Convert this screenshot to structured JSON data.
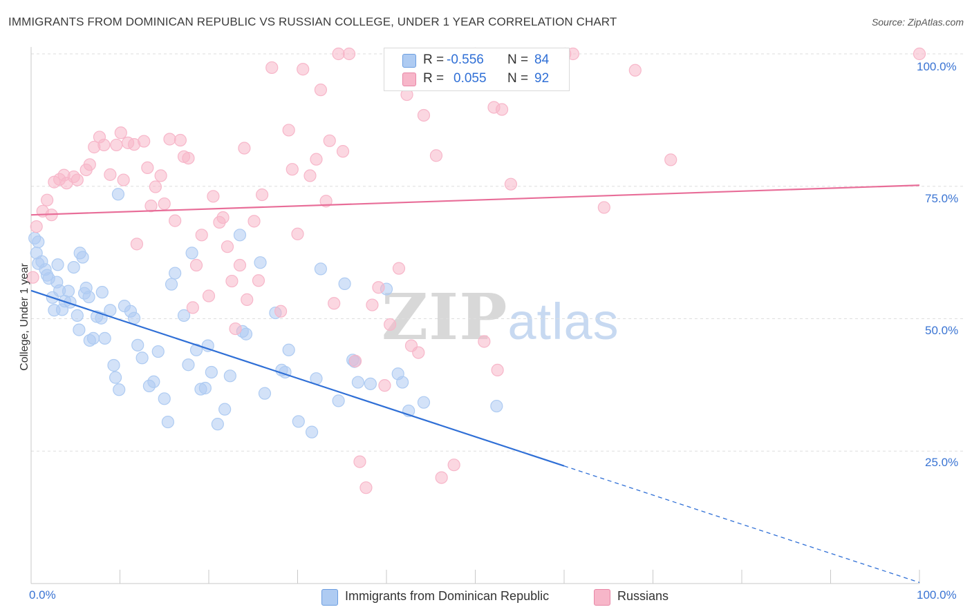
{
  "header": {
    "title": "IMMIGRANTS FROM DOMINICAN REPUBLIC VS RUSSIAN COLLEGE, UNDER 1 YEAR CORRELATION CHART",
    "source": "Source: ZipAtlas.com"
  },
  "watermark": {
    "zip": "ZIP",
    "atlas": "atlas"
  },
  "legend": {
    "rows": [
      {
        "r_label": "R =",
        "r_value": "-0.556",
        "n_label": "N =",
        "n_value": "84",
        "color": "#aecbf2"
      },
      {
        "r_label": "R =",
        "r_value": "0.055",
        "n_label": "N =",
        "n_value": "92",
        "color": "#f7b6c9"
      }
    ]
  },
  "bottom_legend": [
    {
      "label": "Immigrants from Dominican Republic",
      "color": "#aecbf2"
    },
    {
      "label": "Russians",
      "color": "#f7b6c9"
    }
  ],
  "chart_data": {
    "type": "scatter",
    "title": "IMMIGRANTS FROM DOMINICAN REPUBLIC VS RUSSIAN COLLEGE, UNDER 1 YEAR CORRELATION CHART",
    "xlabel": "",
    "ylabel": "College, Under 1 year",
    "xlim": [
      0,
      100
    ],
    "ylim": [
      0,
      100
    ],
    "x_tick_labels": [
      "0.0%",
      "100.0%"
    ],
    "y_tick_labels": [
      "25.0%",
      "50.0%",
      "75.0%",
      "100.0%"
    ],
    "y_ticks": [
      25,
      50,
      75,
      100
    ],
    "grid": true,
    "legend_position": "top-center",
    "series": [
      {
        "name": "Immigrants from Dominican Republic",
        "color": "#2f6fd6",
        "fill": "#aecbf2",
        "trend": {
          "x0": 0,
          "y0": 55.3,
          "x1": 60,
          "y1": 22.2,
          "dash_to_x": 100,
          "dash_to_y": 0.2
        },
        "points": [
          [
            0.4,
            65.2
          ],
          [
            0.6,
            62.4
          ],
          [
            0.8,
            60.4
          ],
          [
            1.2,
            60.8
          ],
          [
            1.6,
            59.3
          ],
          [
            1.8,
            58.2
          ],
          [
            2.0,
            57.6
          ],
          [
            2.4,
            54.0
          ],
          [
            2.6,
            51.6
          ],
          [
            2.9,
            56.9
          ],
          [
            3.2,
            55.3
          ],
          [
            3.5,
            51.7
          ],
          [
            3.8,
            53.3
          ],
          [
            4.2,
            55.2
          ],
          [
            4.4,
            53.1
          ],
          [
            5.5,
            62.4
          ],
          [
            5.8,
            61.6
          ],
          [
            4.8,
            59.7
          ],
          [
            6.2,
            55.8
          ],
          [
            6.0,
            54.8
          ],
          [
            6.5,
            54.1
          ],
          [
            5.2,
            50.6
          ],
          [
            5.4,
            47.9
          ],
          [
            6.6,
            45.9
          ],
          [
            7.4,
            50.4
          ],
          [
            7.9,
            50.1
          ],
          [
            7.0,
            46.3
          ],
          [
            8.3,
            46.3
          ],
          [
            8.9,
            51.6
          ],
          [
            9.3,
            41.2
          ],
          [
            9.9,
            36.6
          ],
          [
            9.5,
            38.9
          ],
          [
            10.5,
            52.4
          ],
          [
            11.2,
            51.4
          ],
          [
            11.6,
            50.1
          ],
          [
            12.0,
            45.0
          ],
          [
            12.5,
            42.6
          ],
          [
            13.3,
            37.3
          ],
          [
            13.8,
            38.1
          ],
          [
            14.3,
            43.8
          ],
          [
            15.0,
            34.9
          ],
          [
            15.4,
            30.5
          ],
          [
            15.8,
            56.5
          ],
          [
            16.2,
            58.6
          ],
          [
            17.2,
            50.6
          ],
          [
            17.7,
            41.3
          ],
          [
            18.1,
            62.4
          ],
          [
            18.6,
            44.1
          ],
          [
            19.1,
            36.7
          ],
          [
            19.6,
            36.9
          ],
          [
            19.9,
            44.9
          ],
          [
            20.3,
            39.9
          ],
          [
            21.0,
            30.1
          ],
          [
            21.8,
            32.9
          ],
          [
            22.4,
            39.2
          ],
          [
            23.5,
            65.8
          ],
          [
            23.8,
            47.6
          ],
          [
            24.2,
            47.1
          ],
          [
            25.8,
            60.6
          ],
          [
            26.3,
            35.9
          ],
          [
            27.5,
            51.1
          ],
          [
            28.2,
            40.3
          ],
          [
            28.6,
            39.9
          ],
          [
            29.0,
            44.1
          ],
          [
            30.1,
            30.6
          ],
          [
            31.6,
            28.6
          ],
          [
            32.1,
            38.7
          ],
          [
            32.6,
            59.4
          ],
          [
            34.6,
            34.5
          ],
          [
            35.3,
            56.6
          ],
          [
            36.2,
            42.2
          ],
          [
            36.4,
            41.9
          ],
          [
            36.8,
            38.0
          ],
          [
            38.2,
            37.7
          ],
          [
            40.0,
            55.6
          ],
          [
            41.3,
            39.6
          ],
          [
            41.8,
            38.0
          ],
          [
            42.5,
            32.6
          ],
          [
            44.2,
            34.2
          ],
          [
            52.4,
            33.5
          ],
          [
            9.8,
            73.5
          ],
          [
            0.8,
            64.5
          ],
          [
            3.0,
            60.2
          ],
          [
            8.0,
            55.0
          ]
        ]
      },
      {
        "name": "Russians",
        "color": "#e86d98",
        "fill": "#f7b6c9",
        "trend": {
          "x0": 0,
          "y0": 69.6,
          "x1": 100,
          "y1": 75.2
        },
        "points": [
          [
            0.2,
            57.8
          ],
          [
            0.6,
            67.4
          ],
          [
            1.3,
            70.3
          ],
          [
            1.8,
            72.4
          ],
          [
            2.3,
            69.6
          ],
          [
            2.6,
            75.8
          ],
          [
            3.2,
            76.3
          ],
          [
            3.7,
            77.1
          ],
          [
            4.0,
            75.6
          ],
          [
            4.8,
            76.8
          ],
          [
            5.2,
            76.2
          ],
          [
            6.6,
            79.1
          ],
          [
            6.2,
            78.1
          ],
          [
            7.1,
            82.4
          ],
          [
            7.7,
            84.3
          ],
          [
            8.2,
            82.8
          ],
          [
            8.9,
            77.2
          ],
          [
            9.6,
            82.8
          ],
          [
            10.1,
            85.1
          ],
          [
            10.4,
            76.2
          ],
          [
            10.9,
            83.2
          ],
          [
            11.6,
            82.9
          ],
          [
            11.9,
            64.1
          ],
          [
            12.7,
            83.5
          ],
          [
            13.1,
            78.5
          ],
          [
            13.5,
            71.3
          ],
          [
            14.0,
            74.9
          ],
          [
            14.6,
            77.0
          ],
          [
            15.0,
            71.7
          ],
          [
            15.6,
            83.9
          ],
          [
            16.2,
            68.5
          ],
          [
            16.8,
            83.7
          ],
          [
            17.2,
            80.6
          ],
          [
            17.7,
            80.3
          ],
          [
            18.2,
            52.1
          ],
          [
            18.6,
            60.1
          ],
          [
            19.2,
            65.8
          ],
          [
            20.0,
            54.3
          ],
          [
            20.5,
            73.1
          ],
          [
            21.2,
            68.2
          ],
          [
            21.6,
            69.1
          ],
          [
            22.1,
            63.6
          ],
          [
            22.6,
            57.1
          ],
          [
            23.0,
            48.1
          ],
          [
            23.5,
            60.1
          ],
          [
            24.0,
            82.2
          ],
          [
            24.3,
            53.6
          ],
          [
            25.1,
            68.4
          ],
          [
            25.6,
            57.2
          ],
          [
            26.0,
            73.4
          ],
          [
            27.1,
            97.4
          ],
          [
            28.1,
            51.4
          ],
          [
            29.0,
            85.6
          ],
          [
            29.4,
            78.2
          ],
          [
            30.0,
            66.0
          ],
          [
            30.6,
            97.1
          ],
          [
            31.4,
            77.0
          ],
          [
            32.1,
            80.1
          ],
          [
            32.6,
            93.2
          ],
          [
            33.2,
            72.2
          ],
          [
            33.6,
            83.6
          ],
          [
            34.1,
            52.9
          ],
          [
            34.6,
            100.0
          ],
          [
            35.1,
            81.6
          ],
          [
            35.8,
            100.0
          ],
          [
            36.5,
            42.0
          ],
          [
            37.0,
            23.0
          ],
          [
            37.7,
            18.1
          ],
          [
            38.4,
            52.6
          ],
          [
            39.1,
            55.9
          ],
          [
            39.8,
            37.4
          ],
          [
            40.4,
            48.9
          ],
          [
            41.4,
            59.5
          ],
          [
            42.3,
            92.3
          ],
          [
            42.8,
            44.9
          ],
          [
            43.6,
            43.6
          ],
          [
            44.2,
            88.4
          ],
          [
            45.6,
            80.8
          ],
          [
            46.2,
            20.0
          ],
          [
            47.6,
            22.4
          ],
          [
            50.0,
            100.0
          ],
          [
            51.0,
            45.7
          ],
          [
            52.1,
            89.9
          ],
          [
            52.5,
            40.3
          ],
          [
            53.0,
            89.5
          ],
          [
            54.0,
            75.4
          ],
          [
            60.1,
            100.0
          ],
          [
            61.0,
            100.0
          ],
          [
            64.5,
            71.0
          ],
          [
            68.0,
            96.9
          ],
          [
            72.0,
            80.0
          ],
          [
            100.0,
            100.0
          ]
        ]
      }
    ]
  }
}
